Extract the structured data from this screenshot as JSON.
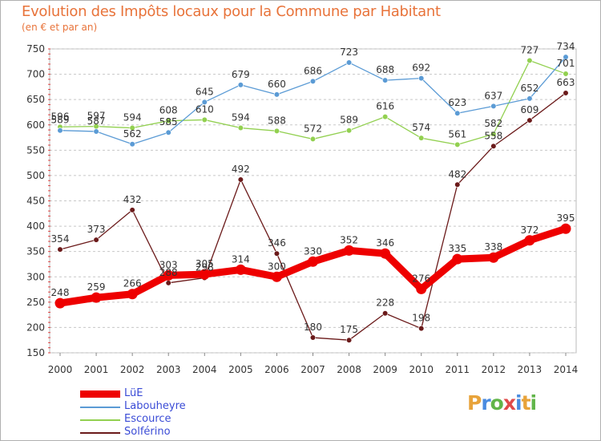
{
  "title": "Evolution des Impôts locaux pour la Commune par Habitant",
  "subtitle": "(en € et par an)",
  "logo": {
    "text": "Proxiti",
    "letters": [
      "P",
      "r",
      "o",
      "x",
      "i",
      "t",
      "i"
    ]
  },
  "colors": {
    "title": "#e8733a",
    "LüE": "#ee0000",
    "Labouheyre": "#5b9bd5",
    "Escource": "#92d050",
    "Solférino": "#6b1a1a",
    "grid": "#c8c8c8",
    "legend_text": "#3a4bd6"
  },
  "chart_data": {
    "type": "line",
    "x": [
      "2000",
      "2001",
      "2002",
      "2003",
      "2004",
      "2005",
      "2006",
      "2007",
      "2008",
      "2009",
      "2010",
      "2011",
      "2012",
      "2013",
      "2014"
    ],
    "ylim": [
      150,
      750
    ],
    "yticks": [
      150,
      200,
      250,
      300,
      350,
      400,
      450,
      500,
      550,
      600,
      650,
      700,
      750
    ],
    "grid": "horizontal dashed",
    "legend_placement": "bottom-left",
    "series": [
      {
        "name": "LüE",
        "color": "#ee0000",
        "width": 9,
        "values": [
          248,
          259,
          266,
          303,
          305,
          314,
          300,
          330,
          352,
          346,
          276,
          335,
          338,
          372,
          395
        ]
      },
      {
        "name": "Labouheyre",
        "color": "#5b9bd5",
        "width": 1.3,
        "values": [
          589,
          587,
          562,
          585,
          645,
          679,
          660,
          686,
          723,
          688,
          692,
          623,
          637,
          652,
          734
        ]
      },
      {
        "name": "Escource",
        "color": "#92d050",
        "width": 1.3,
        "values": [
          596,
          597,
          594,
          608,
          610,
          594,
          588,
          572,
          589,
          616,
          574,
          561,
          582,
          727,
          701
        ]
      },
      {
        "name": "Solférino",
        "color": "#6b1a1a",
        "width": 1.3,
        "values": [
          354,
          373,
          432,
          288,
          298,
          492,
          346,
          180,
          175,
          228,
          198,
          482,
          558,
          609,
          663
        ]
      }
    ]
  },
  "legend": [
    {
      "label": "LüE",
      "color": "#ee0000"
    },
    {
      "label": "Labouheyre",
      "color": "#5b9bd5"
    },
    {
      "label": "Escource",
      "color": "#92d050"
    },
    {
      "label": "Solférino",
      "color": "#6b1a1a"
    }
  ]
}
